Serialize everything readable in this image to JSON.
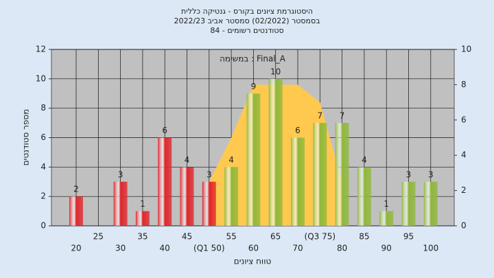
{
  "chart_data": {
    "type": "bar",
    "title": [
      "היסטוגרמת ציונים בקורס - גנטיקה כללית",
      "בסמסטר (02/2022) סמסטר אביב 2022/23",
      "סטודנטים רשומים - 84"
    ],
    "annotation": "במשימה : Final_A",
    "x_label": "טווח ציונים",
    "y_label": "מספר סטודנטים",
    "categories": [
      "20",
      "25",
      "30",
      "35",
      "40",
      "45",
      "(Q1 50)",
      "55",
      "60",
      "65",
      "70",
      "(Q3 75)",
      "80",
      "85",
      "90",
      "95",
      "100"
    ],
    "series": [
      {
        "values": [
          2,
          null,
          3,
          1,
          6,
          4,
          3,
          4,
          9,
          10,
          6,
          7,
          7,
          4,
          1,
          3,
          3
        ],
        "colors": [
          "#e0262b",
          "#e0262b",
          "#e0262b",
          "#e0262b",
          "#e0262b",
          "#e0262b",
          "#e0262b",
          "#8fb83a",
          "#8fb83a",
          "#8fb83a",
          "#8fb83a",
          "#8fb83a",
          "#8fb83a",
          "#8fb83a",
          "#8fb83a",
          "#8fb83a",
          "#8fb83a"
        ]
      },
      {
        "type": "area",
        "axis": "y2",
        "color": "#ffc950",
        "values": [
          null,
          null,
          null,
          null,
          null,
          null,
          2.5,
          5,
          8,
          8,
          8,
          7,
          2.5,
          null,
          null,
          null,
          null
        ]
      }
    ],
    "ylim": [
      0,
      12
    ],
    "yticks": [
      0,
      2,
      4,
      6,
      8,
      10,
      12
    ],
    "y2lim": [
      0,
      10
    ],
    "y2ticks": [
      0,
      2,
      4,
      6,
      8,
      10
    ],
    "grid": true
  }
}
